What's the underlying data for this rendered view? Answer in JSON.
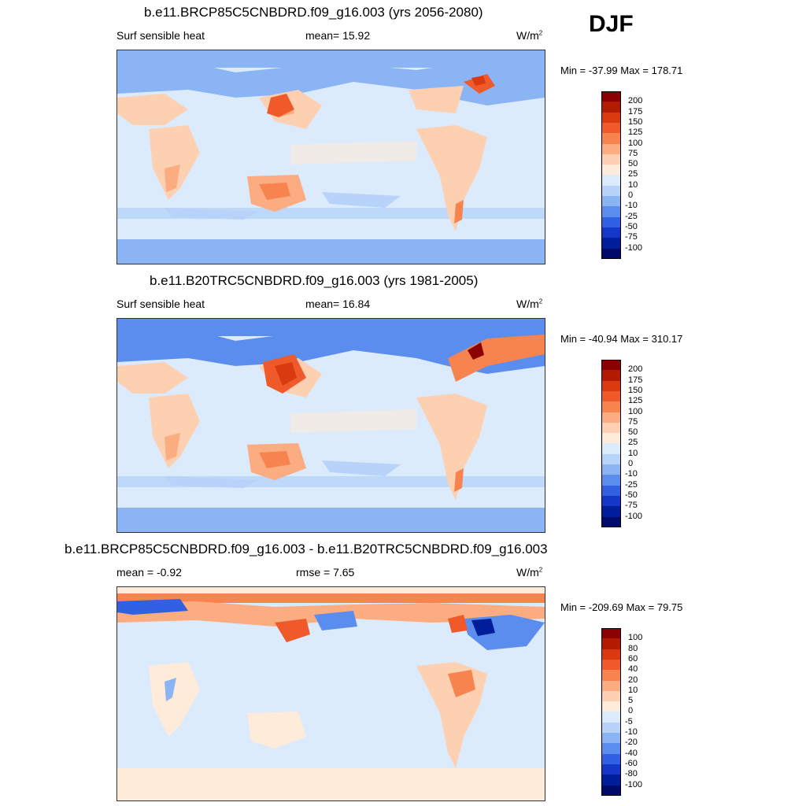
{
  "season": "DJF",
  "panels": [
    {
      "title": "b.e11.BRCP85C5CNBDRD.f09_g16.003 (yrs 2056-2080)",
      "left_label": "Surf sensible heat",
      "mid_label": "mean=  15.92",
      "unit": "W/m",
      "unit_sup": "2",
      "minmax": "Min = -37.99 Max = 178.71",
      "colorbar": {
        "labels": [
          "200",
          "175",
          "150",
          "125",
          "100",
          "75",
          "50",
          "25",
          "10",
          "0",
          "-10",
          "-25",
          "-50",
          "-75",
          "-100"
        ],
        "colors": [
          "#8b0000",
          "#b31b00",
          "#d93a10",
          "#f05a2a",
          "#f7844f",
          "#fbac80",
          "#fdd0b2",
          "#feebd9",
          "#dcebfc",
          "#b7d3f9",
          "#8ab4f3",
          "#5a8ded",
          "#3061e3",
          "#1437c8",
          "#001e9a",
          "#000a6b"
        ]
      }
    },
    {
      "title": "b.e11.B20TRC5CNBDRD.f09_g16.003 (yrs 1981-2005)",
      "left_label": "Surf sensible heat",
      "mid_label": "mean=  16.84",
      "unit": "W/m",
      "unit_sup": "2",
      "minmax": "Min = -40.94 Max = 310.17",
      "colorbar": {
        "labels": [
          "200",
          "175",
          "150",
          "125",
          "100",
          "75",
          "50",
          "25",
          "10",
          "0",
          "-10",
          "-25",
          "-50",
          "-75",
          "-100"
        ],
        "colors": [
          "#8b0000",
          "#b31b00",
          "#d93a10",
          "#f05a2a",
          "#f7844f",
          "#fbac80",
          "#fdd0b2",
          "#feebd9",
          "#dcebfc",
          "#b7d3f9",
          "#8ab4f3",
          "#5a8ded",
          "#3061e3",
          "#1437c8",
          "#001e9a",
          "#000a6b"
        ]
      }
    },
    {
      "title": "b.e11.BRCP85C5CNBDRD.f09_g16.003 - b.e11.B20TRC5CNBDRD.f09_g16.003",
      "left_label": "mean =  -0.92",
      "mid_label": "rmse =   7.65",
      "unit": "W/m",
      "unit_sup": "2",
      "minmax": "Min = -209.69 Max =  79.75",
      "colorbar": {
        "labels": [
          "100",
          "80",
          "60",
          "40",
          "20",
          "10",
          "5",
          "0",
          "-5",
          "-10",
          "-20",
          "-40",
          "-60",
          "-80",
          "-100"
        ],
        "colors": [
          "#8b0000",
          "#b31b00",
          "#d93a10",
          "#f05a2a",
          "#f7844f",
          "#fbac80",
          "#fdd0b2",
          "#feebd9",
          "#dcebfc",
          "#b7d3f9",
          "#8ab4f3",
          "#5a8ded",
          "#3061e3",
          "#1437c8",
          "#001e9a",
          "#000a6b"
        ]
      }
    }
  ]
}
